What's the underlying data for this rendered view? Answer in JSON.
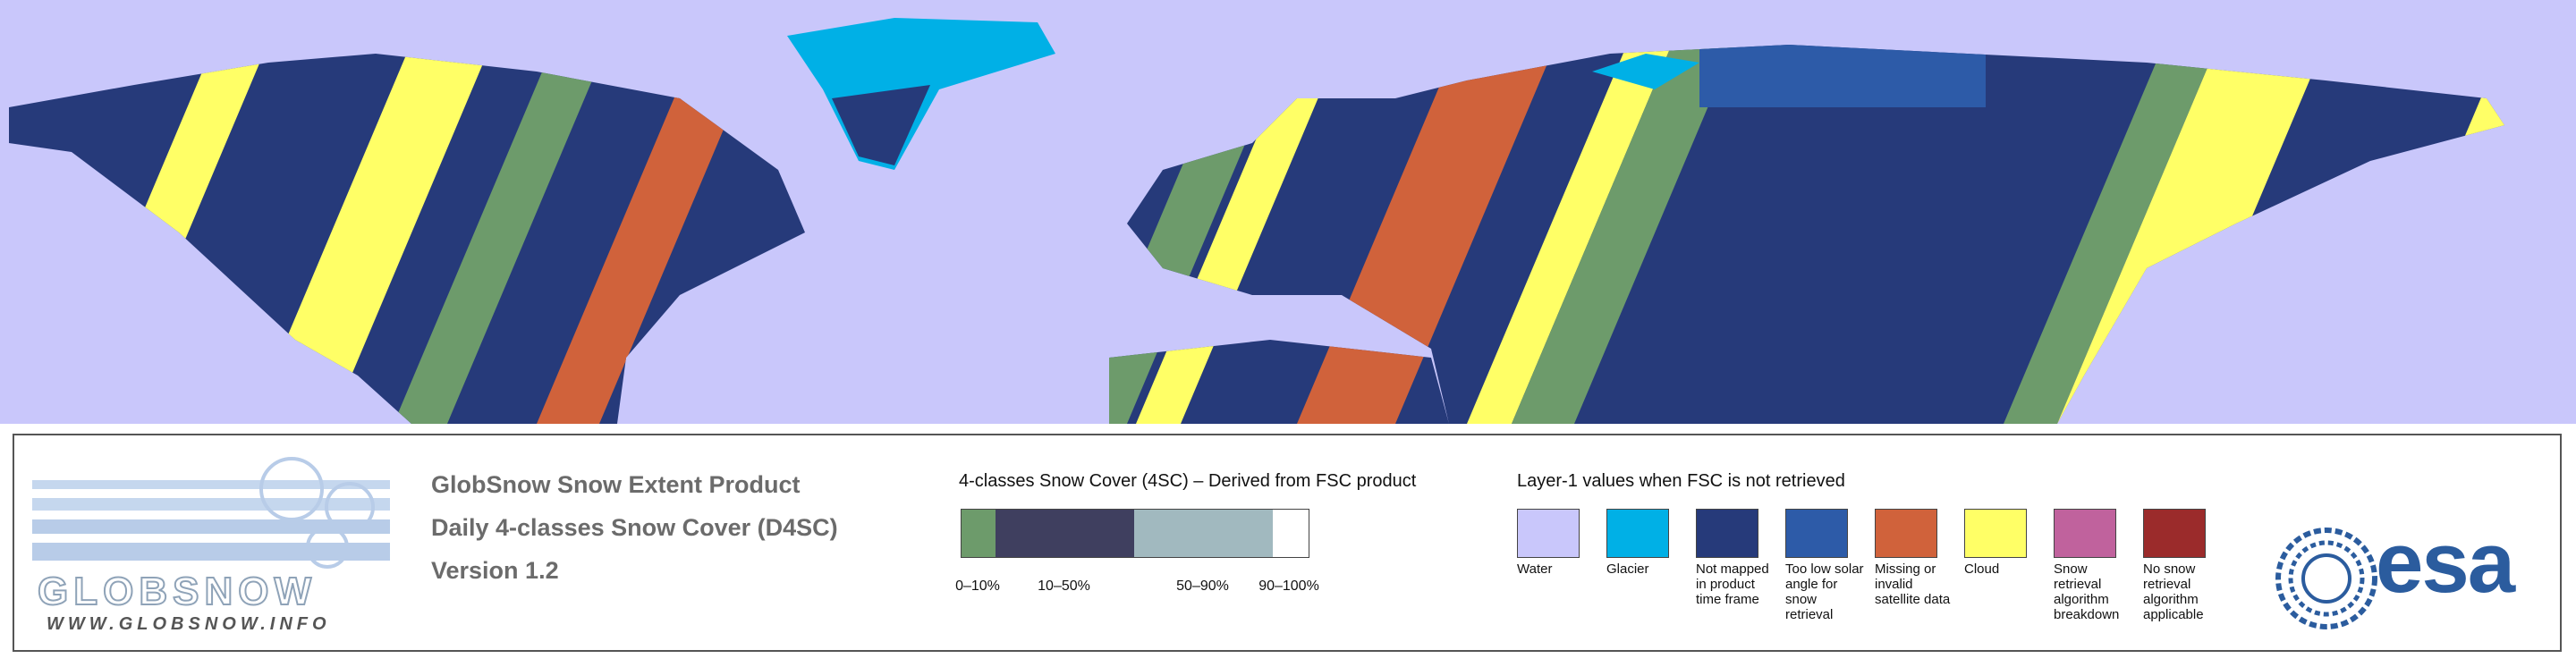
{
  "logo": {
    "name": "GLOBSNOW",
    "url": "WWW.GLOBSNOW.INFO"
  },
  "product": {
    "lines": [
      "GlobSnow Snow Extent Product",
      "Daily 4-classes Snow Cover (D4SC)",
      "Version 1.2"
    ]
  },
  "snow_classes": {
    "title": "4-classes Snow Cover (4SC) – Derived from FSC product",
    "classes": [
      {
        "label": "0–10%",
        "color": "#6d9b6b"
      },
      {
        "label": "10–50%",
        "color": "#3f3f5f"
      },
      {
        "label": "50–90%",
        "color": "#a1b9bf"
      },
      {
        "label": "90–100%",
        "color": "#ffffff"
      }
    ]
  },
  "layer1": {
    "title": "Layer-1 values when FSC is not retrieved",
    "items": [
      {
        "label": "Water",
        "color": "#c9c7fb"
      },
      {
        "label": "Glacier",
        "color": "#00b0e6"
      },
      {
        "label": "Not mapped in product time frame",
        "color": "#263a7a"
      },
      {
        "label": "Too low solar angle for snow retrieval",
        "color": "#2d5ba8"
      },
      {
        "label": "Missing or invalid satellite data",
        "color": "#d0623b"
      },
      {
        "label": "Cloud",
        "color": "#ffff66"
      },
      {
        "label": "Snow retrieval algorithm breakdown",
        "color": "#c0629d"
      },
      {
        "label": "No snow retrieval algorithm applicable",
        "color": "#9b2b2b"
      }
    ]
  },
  "esa": "esa"
}
